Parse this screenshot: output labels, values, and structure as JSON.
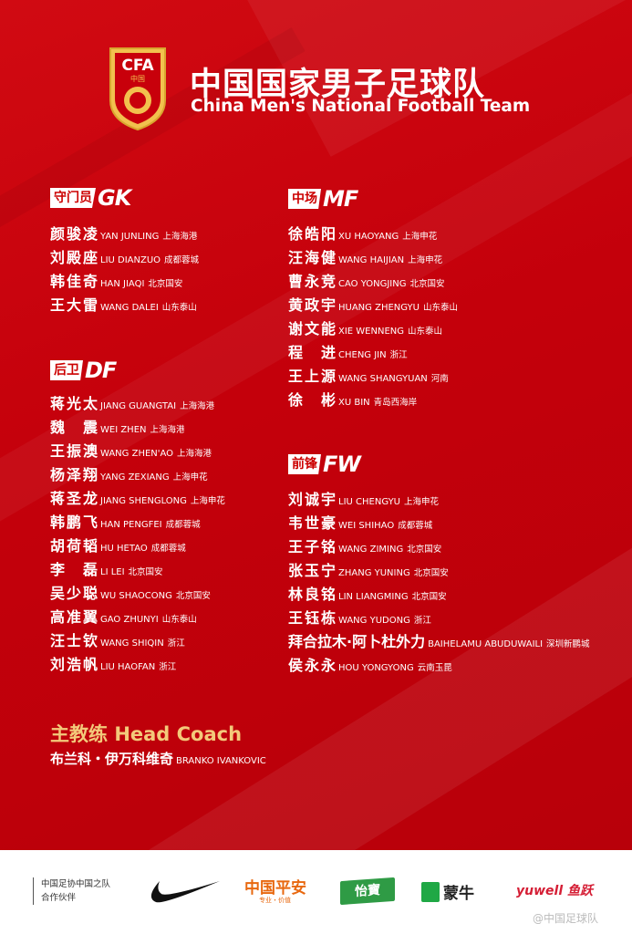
{
  "header": {
    "logo_text": "CFA",
    "logo_sub": "中国",
    "title_cn": "中国国家男子足球队",
    "title_en": "China Men's National Football Team"
  },
  "colors": {
    "background": "#c4000b",
    "accent_gold": "#f3c97a",
    "text": "#ffffff"
  },
  "sections": {
    "gk": {
      "cn": "守门员",
      "en": "GK",
      "players": [
        {
          "cn": "颜骏凌",
          "en": "YAN JUNLING",
          "club": "上海海港"
        },
        {
          "cn": "刘殿座",
          "en": "LIU DIANZUO",
          "club": "成都蓉城"
        },
        {
          "cn": "韩佳奇",
          "en": "HAN JIAQI",
          "club": "北京国安"
        },
        {
          "cn": "王大雷",
          "en": "WANG DALEI",
          "club": "山东泰山"
        }
      ]
    },
    "df": {
      "cn": "后卫",
      "en": "DF",
      "players": [
        {
          "cn": "蒋光太",
          "en": "JIANG GUANGTAI",
          "club": "上海海港"
        },
        {
          "cn": "魏　震",
          "en": "WEI ZHEN",
          "club": "上海海港"
        },
        {
          "cn": "王振澳",
          "en": "WANG ZHEN'AO",
          "club": "上海海港"
        },
        {
          "cn": "杨泽翔",
          "en": "YANG ZEXIANG",
          "club": "上海申花"
        },
        {
          "cn": "蒋圣龙",
          "en": "JIANG SHENGLONG",
          "club": "上海申花"
        },
        {
          "cn": "韩鹏飞",
          "en": "HAN PENGFEI",
          "club": "成都蓉城"
        },
        {
          "cn": "胡荷韬",
          "en": "HU HETAO",
          "club": "成都蓉城"
        },
        {
          "cn": "李　磊",
          "en": "LI LEI",
          "club": "北京国安"
        },
        {
          "cn": "吴少聪",
          "en": "WU SHAOCONG",
          "club": "北京国安"
        },
        {
          "cn": "高准翼",
          "en": "GAO ZHUNYI",
          "club": "山东泰山"
        },
        {
          "cn": "汪士钦",
          "en": "WANG SHIQIN",
          "club": "浙江"
        },
        {
          "cn": "刘浩帆",
          "en": "LIU HAOFAN",
          "club": "浙江"
        }
      ]
    },
    "mf": {
      "cn": "中场",
      "en": "MF",
      "players": [
        {
          "cn": "徐皓阳",
          "en": "XU HAOYANG",
          "club": "上海申花"
        },
        {
          "cn": "汪海健",
          "en": "WANG HAIJIAN",
          "club": "上海申花"
        },
        {
          "cn": "曹永竞",
          "en": "CAO YONGJING",
          "club": "北京国安"
        },
        {
          "cn": "黄政宇",
          "en": "HUANG ZHENGYU",
          "club": "山东泰山"
        },
        {
          "cn": "谢文能",
          "en": "XIE WENNENG",
          "club": "山东泰山"
        },
        {
          "cn": "程　进",
          "en": "CHENG JIN",
          "club": "浙江"
        },
        {
          "cn": "王上源",
          "en": "WANG SHANGYUAN",
          "club": "河南"
        },
        {
          "cn": "徐　彬",
          "en": "XU BIN",
          "club": "青岛西海岸"
        }
      ]
    },
    "fw": {
      "cn": "前锋",
      "en": "FW",
      "players": [
        {
          "cn": "刘诚宇",
          "en": "LIU CHENGYU",
          "club": "上海申花"
        },
        {
          "cn": "韦世豪",
          "en": "WEI SHIHAO",
          "club": "成都蓉城"
        },
        {
          "cn": "王子铭",
          "en": "WANG ZIMING",
          "club": "北京国安"
        },
        {
          "cn": "张玉宁",
          "en": "ZHANG YUNING",
          "club": "北京国安"
        },
        {
          "cn": "林良铭",
          "en": "LIN LIANGMING",
          "club": "北京国安"
        },
        {
          "cn": "王钰栋",
          "en": "WANG YUDONG",
          "club": "浙江"
        },
        {
          "cn": "拜合拉木·阿卜杜外力",
          "en": "BAIHELAMU ABUDUWAILI",
          "club": "深圳新鹏城"
        },
        {
          "cn": "侯永永",
          "en": "HOU YONGYONG",
          "club": "云南玉昆"
        }
      ]
    }
  },
  "coach": {
    "label_cn": "主教练",
    "label_en": "Head Coach",
    "name_cn": "布兰科・伊万科维奇",
    "name_en": "BRANKO IVANKOVIC"
  },
  "footer": {
    "partner_line1": "中国足协中国之队",
    "partner_line2": "合作伙伴",
    "sponsors": {
      "nike": "nike-swoosh",
      "pingan": "中国平安",
      "pingan_sub": "专业・价值",
      "yibao": "怡寶",
      "mengniu": "蒙牛",
      "yuwell": "yuwell 鱼跃"
    },
    "watermark": "@中国足球队"
  }
}
